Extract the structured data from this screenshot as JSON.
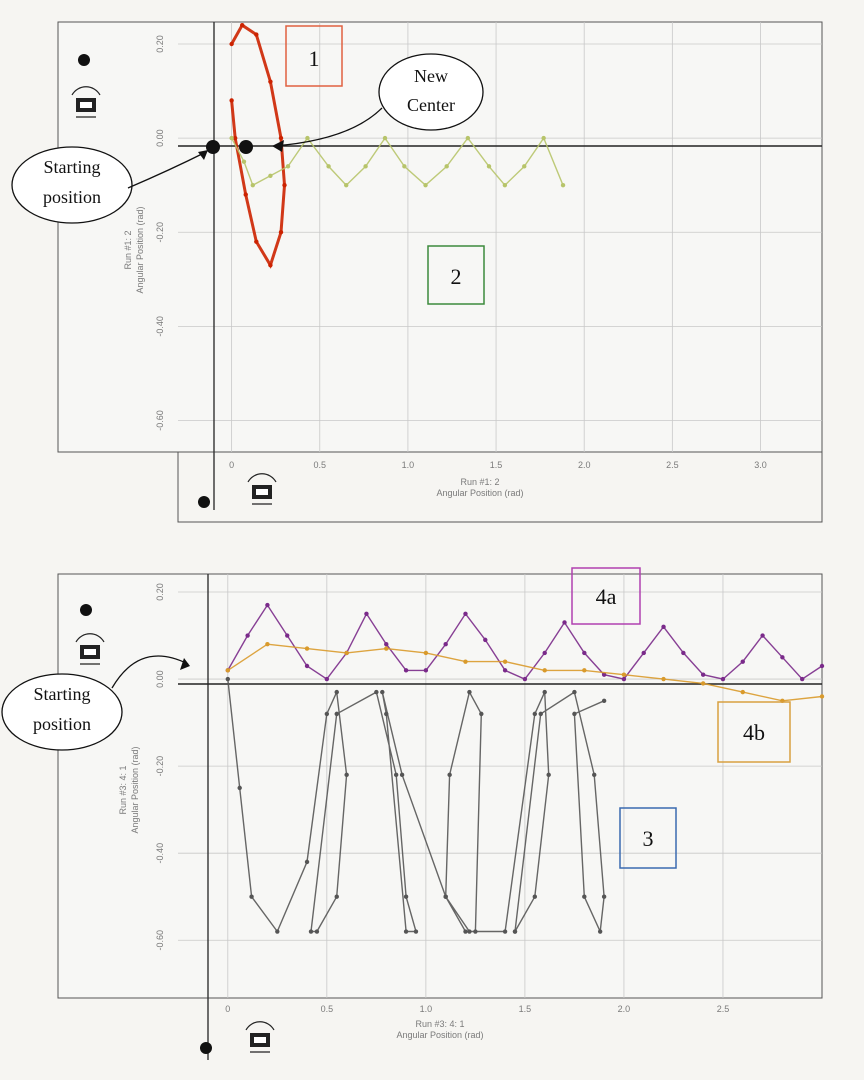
{
  "chart_data": [
    {
      "type": "scatter",
      "xlabel_top": "Run #1: 2",
      "xlabel": "Angular Position (rad)",
      "ylabel_top": "Run #1: 2",
      "ylabel": "Angular Position (rad)",
      "x_ticks": [
        "0",
        "0.5",
        "1.0",
        "1.5",
        "2.0",
        "2.5",
        "3.0"
      ],
      "y_ticks": [
        "0.20",
        "0.00",
        "-0.20",
        "-0.40",
        "-0.60"
      ],
      "xlim": [
        -0.1,
        3.4
      ],
      "ylim": [
        -0.65,
        0.2
      ],
      "series": [
        {
          "name": "1",
          "color": "#cc2200",
          "x": [
            0.0,
            0.06,
            0.14,
            0.22,
            0.28,
            0.3,
            0.28,
            0.22,
            0.14,
            0.08,
            0.02,
            0.0
          ],
          "y": [
            0.2,
            0.24,
            0.22,
            0.12,
            0.0,
            -0.1,
            -0.2,
            -0.27,
            -0.22,
            -0.12,
            0.0,
            0.08
          ]
        },
        {
          "name": "2",
          "color": "#b7c46a",
          "x": [
            0.0,
            0.07,
            0.12,
            0.22,
            0.32,
            0.43,
            0.55,
            0.65,
            0.76,
            0.87,
            0.98,
            1.1,
            1.22,
            1.34,
            1.46,
            1.55,
            1.66,
            1.77,
            1.88
          ],
          "y": [
            0.0,
            -0.05,
            -0.1,
            -0.08,
            -0.06,
            0.0,
            -0.06,
            -0.1,
            -0.06,
            0.0,
            -0.06,
            -0.1,
            -0.06,
            0.0,
            -0.06,
            -0.1,
            -0.06,
            0.0,
            -0.1
          ]
        }
      ]
    },
    {
      "type": "scatter",
      "xlabel_top": "Run #3: 4: 1",
      "xlabel": "Angular Position (rad)",
      "ylabel_top": "Run #3: 4: 1",
      "ylabel": "Angular Position (rad)",
      "x_ticks": [
        "0",
        "0.5",
        "1.0",
        "1.5",
        "2.0",
        "2.5"
      ],
      "y_ticks": [
        "0.20",
        "0.00",
        "-0.20",
        "-0.40",
        "-0.60"
      ],
      "xlim": [
        -0.1,
        3.0
      ],
      "ylim": [
        -0.65,
        0.2
      ],
      "series": [
        {
          "name": "4a",
          "color": "#7a2a8a",
          "x": [
            0.0,
            0.1,
            0.2,
            0.3,
            0.4,
            0.5,
            0.6,
            0.7,
            0.8,
            0.9,
            1.0,
            1.1,
            1.2,
            1.3,
            1.4,
            1.5,
            1.6,
            1.7,
            1.8,
            1.9,
            2.0,
            2.1,
            2.2,
            2.3,
            2.4,
            2.5,
            2.6,
            2.7,
            2.8,
            2.9,
            3.0
          ],
          "y": [
            0.02,
            0.1,
            0.17,
            0.1,
            0.03,
            0.0,
            0.06,
            0.15,
            0.08,
            0.02,
            0.02,
            0.08,
            0.15,
            0.09,
            0.02,
            0.0,
            0.06,
            0.13,
            0.06,
            0.01,
            0.0,
            0.06,
            0.12,
            0.06,
            0.01,
            0.0,
            0.04,
            0.1,
            0.05,
            0.0,
            0.03
          ]
        },
        {
          "name": "4b",
          "color": "#d99a2b",
          "x": [
            0.0,
            0.2,
            0.4,
            0.6,
            0.8,
            1.0,
            1.2,
            1.4,
            1.6,
            1.8,
            2.0,
            2.2,
            2.4,
            2.6,
            2.8,
            3.0
          ],
          "y": [
            0.02,
            0.08,
            0.07,
            0.06,
            0.07,
            0.06,
            0.04,
            0.04,
            0.02,
            0.02,
            0.01,
            0.0,
            -0.01,
            -0.03,
            -0.05,
            -0.04
          ]
        },
        {
          "name": "3",
          "color": "#555555",
          "x": [
            0.0,
            0.06,
            0.12,
            0.25,
            0.4,
            0.5,
            0.55,
            0.6,
            0.55,
            0.45,
            0.42,
            0.55,
            0.75,
            0.85,
            0.9,
            0.95,
            0.9,
            0.8,
            0.78,
            0.88,
            1.1,
            1.2,
            1.25,
            1.28,
            1.22,
            1.12,
            1.1,
            1.22,
            1.4,
            1.55,
            1.6,
            1.62,
            1.55,
            1.45,
            1.45,
            1.58,
            1.75,
            1.85,
            1.9,
            1.88,
            1.8,
            1.75,
            1.9
          ],
          "y": [
            0.0,
            -0.25,
            -0.5,
            -0.58,
            -0.42,
            -0.08,
            -0.03,
            -0.22,
            -0.5,
            -0.58,
            -0.58,
            -0.08,
            -0.03,
            -0.22,
            -0.5,
            -0.58,
            -0.58,
            -0.08,
            -0.03,
            -0.22,
            -0.5,
            -0.58,
            -0.58,
            -0.08,
            -0.03,
            -0.22,
            -0.5,
            -0.58,
            -0.58,
            -0.08,
            -0.03,
            -0.22,
            -0.5,
            -0.58,
            -0.58,
            -0.08,
            -0.03,
            -0.22,
            -0.5,
            -0.58,
            -0.5,
            -0.08,
            -0.05
          ]
        }
      ]
    }
  ],
  "annotations": {
    "top": {
      "box1": "1",
      "box2": "2",
      "new_center_line1": "New",
      "new_center_line2": "Center",
      "start_line1": "Starting",
      "start_line2": "position"
    },
    "bottom": {
      "box3": "3",
      "box4a": "4a",
      "box4b": "4b",
      "start_line1": "Starting",
      "start_line2": "position"
    }
  },
  "colors": {
    "box1": "#e06040",
    "box2": "#3c8a3c",
    "box3": "#3a6ab0",
    "box4a": "#b040b0",
    "box4b": "#d8a040"
  },
  "icons": [
    "dot-icon",
    "compass-icon"
  ]
}
